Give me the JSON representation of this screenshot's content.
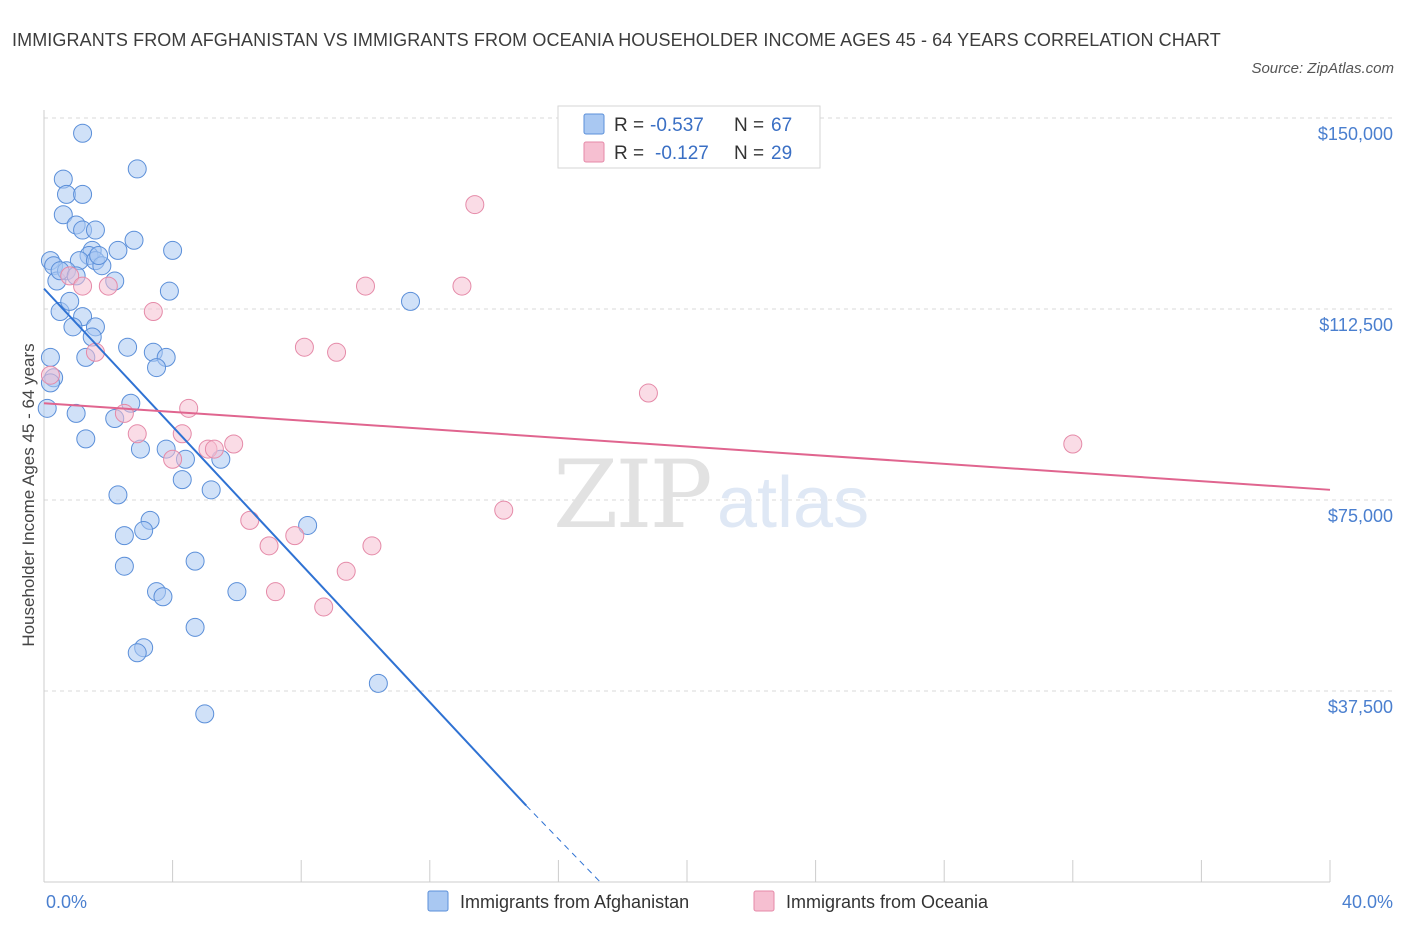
{
  "title": "IMMIGRANTS FROM AFGHANISTAN VS IMMIGRANTS FROM OCEANIA HOUSEHOLDER INCOME AGES 45 - 64 YEARS CORRELATION CHART",
  "source": "Source: ZipAtlas.com",
  "watermark": {
    "zip": "ZIP",
    "atlas": "atlas"
  },
  "legend": {
    "r_label": "R =",
    "n_label": "N =",
    "series": [
      {
        "r": "-0.537",
        "n": "67"
      },
      {
        "r": "-0.127",
        "n": "29"
      }
    ]
  },
  "chart_data": {
    "type": "scatter",
    "title": "IMMIGRANTS FROM AFGHANISTAN VS IMMIGRANTS FROM OCEANIA HOUSEHOLDER INCOME AGES 45 - 64 YEARS CORRELATION CHART",
    "xlabel": "",
    "ylabel": "Householder Income Ages 45 - 64 years",
    "xlim": [
      0,
      40
    ],
    "ylim": [
      0,
      150000
    ],
    "x_tick_labels": [
      "0.0%",
      "40.0%"
    ],
    "y_ticks": [
      37500,
      75000,
      112500,
      150000
    ],
    "y_tick_labels": [
      "$37,500",
      "$75,000",
      "$112,500",
      "$150,000"
    ],
    "grid": "horizontal dashed",
    "legend_position": "top-center",
    "colors": {
      "afghanistan_fill": "#a9c8f2",
      "afghanistan_stroke": "#5b8fd9",
      "afghanistan_line": "#2f72d3",
      "oceania_fill": "#f6bfd1",
      "oceania_stroke": "#e58aa8",
      "oceania_line": "#e0658f",
      "tick_label": "#4a7fcf"
    },
    "series": [
      {
        "name": "Immigrants from Afghanistan",
        "trendline": {
          "x": [
            0.0,
            15.0
          ],
          "y": [
            116500,
            15000
          ],
          "dashed_extension": {
            "x": [
              15.0,
              17.3
            ],
            "y": [
              15000,
              0
            ]
          }
        },
        "points": [
          [
            0.2,
            122000
          ],
          [
            0.3,
            121000
          ],
          [
            0.4,
            118000
          ],
          [
            0.6,
            138000
          ],
          [
            0.7,
            135000
          ],
          [
            1.2,
            147000
          ],
          [
            0.6,
            131000
          ],
          [
            1.0,
            129000
          ],
          [
            1.2,
            128000
          ],
          [
            1.6,
            128000
          ],
          [
            1.5,
            124000
          ],
          [
            1.4,
            123000
          ],
          [
            1.1,
            122000
          ],
          [
            1.6,
            122000
          ],
          [
            1.8,
            121000
          ],
          [
            0.7,
            120000
          ],
          [
            0.5,
            120000
          ],
          [
            1.0,
            119000
          ],
          [
            2.3,
            124000
          ],
          [
            2.8,
            126000
          ],
          [
            2.9,
            140000
          ],
          [
            1.2,
            135000
          ],
          [
            0.5,
            112000
          ],
          [
            0.8,
            114000
          ],
          [
            1.2,
            111000
          ],
          [
            0.9,
            109000
          ],
          [
            1.6,
            109000
          ],
          [
            1.5,
            107000
          ],
          [
            2.2,
            118000
          ],
          [
            3.9,
            116000
          ],
          [
            0.2,
            103000
          ],
          [
            0.3,
            99000
          ],
          [
            0.2,
            98000
          ],
          [
            0.1,
            93000
          ],
          [
            1.0,
            92000
          ],
          [
            1.3,
            103000
          ],
          [
            2.6,
            105000
          ],
          [
            3.4,
            104000
          ],
          [
            3.8,
            103000
          ],
          [
            3.5,
            101000
          ],
          [
            2.7,
            94000
          ],
          [
            2.2,
            91000
          ],
          [
            1.3,
            87000
          ],
          [
            3.0,
            85000
          ],
          [
            3.8,
            85000
          ],
          [
            5.5,
            83000
          ],
          [
            4.4,
            83000
          ],
          [
            4.3,
            79000
          ],
          [
            5.2,
            77000
          ],
          [
            2.3,
            76000
          ],
          [
            3.3,
            71000
          ],
          [
            3.1,
            69000
          ],
          [
            2.5,
            68000
          ],
          [
            8.2,
            70000
          ],
          [
            4.7,
            63000
          ],
          [
            2.5,
            62000
          ],
          [
            3.5,
            57000
          ],
          [
            3.7,
            56000
          ],
          [
            6.0,
            57000
          ],
          [
            4.7,
            50000
          ],
          [
            3.1,
            46000
          ],
          [
            2.9,
            45000
          ],
          [
            10.4,
            39000
          ],
          [
            5.0,
            33000
          ],
          [
            11.4,
            114000
          ],
          [
            4.0,
            124000
          ],
          [
            1.7,
            123000
          ]
        ]
      },
      {
        "name": "Immigrants from Oceania",
        "trendline": {
          "x": [
            0.0,
            40.0
          ],
          "y": [
            94000,
            77000
          ]
        },
        "points": [
          [
            0.2,
            99500
          ],
          [
            0.8,
            119000
          ],
          [
            1.2,
            117000
          ],
          [
            1.6,
            104000
          ],
          [
            2.0,
            117000
          ],
          [
            3.4,
            112000
          ],
          [
            2.5,
            92000
          ],
          [
            2.9,
            88000
          ],
          [
            4.5,
            93000
          ],
          [
            4.3,
            88000
          ],
          [
            4.0,
            83000
          ],
          [
            5.1,
            85000
          ],
          [
            5.3,
            85000
          ],
          [
            5.9,
            86000
          ],
          [
            6.4,
            71000
          ],
          [
            7.0,
            66000
          ],
          [
            7.2,
            57000
          ],
          [
            7.8,
            68000
          ],
          [
            8.1,
            105000
          ],
          [
            8.7,
            54000
          ],
          [
            9.1,
            104000
          ],
          [
            9.4,
            61000
          ],
          [
            10.0,
            117000
          ],
          [
            10.2,
            66000
          ],
          [
            13.0,
            117000
          ],
          [
            13.4,
            133000
          ],
          [
            14.3,
            73000
          ],
          [
            18.8,
            96000
          ],
          [
            32.0,
            86000
          ]
        ]
      }
    ]
  }
}
